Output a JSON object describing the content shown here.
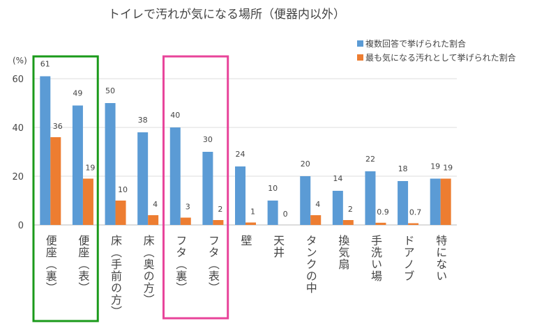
{
  "chart_data": {
    "type": "bar",
    "title": "トイレで汚れが気になる場所（便器内以外）",
    "ylabel": "(%)",
    "ylim": [
      0,
      65
    ],
    "yticks": [
      0,
      20,
      40,
      60
    ],
    "grid": true,
    "legend_position": "top-right",
    "categories": [
      "便座（裏）",
      "便座（表）",
      "床（手前の方）",
      "床（奥の方）",
      "フタ（裏）",
      "フタ（表）",
      "壁",
      "天井",
      "タンクの中",
      "換気扇",
      "手洗い場",
      "ドアノブ",
      "特にない"
    ],
    "series": [
      {
        "name": "複数回答で挙げられた割合",
        "color": "#5b9bd5",
        "values": [
          61,
          49,
          50,
          38,
          40,
          30,
          24,
          10,
          20,
          14,
          22,
          18,
          19
        ],
        "labels": [
          "61",
          "49",
          "50",
          "38",
          "40",
          "30",
          "24",
          "10",
          "20",
          "14",
          "22",
          "18",
          "19"
        ]
      },
      {
        "name": "最も気になる汚れとして挙げられた割合",
        "color": "#ed7d31",
        "values": [
          36,
          19,
          10,
          4,
          3,
          2,
          1,
          0,
          4,
          2,
          0.9,
          0.7,
          19
        ],
        "labels": [
          "36",
          "19",
          "10",
          "4",
          "3",
          "2",
          "1",
          "0",
          "4",
          "2",
          "0.9",
          "0.7",
          "19"
        ]
      }
    ],
    "highlights": [
      {
        "categories": [
          "便座（裏）",
          "便座（表）"
        ],
        "color": "#1a9a1a"
      },
      {
        "categories": [
          "フタ（裏）",
          "フタ（表）"
        ],
        "color": "#e8449a"
      }
    ]
  }
}
